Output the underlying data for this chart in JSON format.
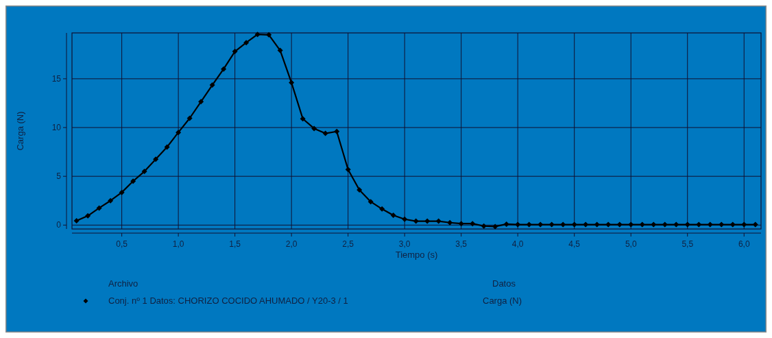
{
  "chart_data": {
    "type": "line",
    "xlabel": "Tiempo (s)",
    "ylabel": "Carga (N)",
    "legend_title": "Archivo",
    "annotations": [
      "Datos",
      "Carga (N)"
    ],
    "xlim": [
      0.06,
      6.15
    ],
    "ylim": [
      -0.4,
      19.7
    ],
    "xticks": [
      {
        "value": 0.5,
        "label": "0,5"
      },
      {
        "value": 1,
        "label": "1,0"
      },
      {
        "value": 1.5,
        "label": "1,5"
      },
      {
        "value": 2,
        "label": "2,0"
      },
      {
        "value": 2.5,
        "label": "2,5"
      },
      {
        "value": 3,
        "label": "3,0"
      },
      {
        "value": 3.5,
        "label": "3,5"
      },
      {
        "value": 4,
        "label": "4,0"
      },
      {
        "value": 4.5,
        "label": "4,5"
      },
      {
        "value": 5,
        "label": "5,0"
      },
      {
        "value": 5.5,
        "label": "5,5"
      },
      {
        "value": 6,
        "label": "6,0"
      }
    ],
    "yticks": [
      0,
      5,
      10,
      15
    ],
    "grid": true,
    "legend": "bottom",
    "marker": "diamond",
    "line_style": "solid",
    "x": [
      0.1,
      0.2,
      0.3,
      0.4,
      0.5,
      0.6,
      0.7,
      0.8,
      0.9,
      1.0,
      1.1,
      1.2,
      1.3,
      1.4,
      1.5,
      1.6,
      1.7,
      1.8,
      1.9,
      2.0,
      2.1,
      2.2,
      2.3,
      2.4,
      2.5,
      2.6,
      2.7,
      2.8,
      2.9,
      3.0,
      3.1,
      3.2,
      3.3,
      3.4,
      3.5,
      3.6,
      3.7,
      3.8,
      3.9,
      4.0,
      4.1,
      4.2,
      4.3,
      4.4,
      4.5,
      4.6,
      4.7,
      4.8,
      4.9,
      5.0,
      5.1,
      5.2,
      5.3,
      5.4,
      5.5,
      5.6,
      5.7,
      5.8,
      5.9,
      6.0,
      6.1
    ],
    "series": [
      {
        "name": "Conj. nº 1 Datos: CHORIZO COCIDO AHUMADO  / Y20-3 / 1",
        "color": "#000000",
        "values": [
          0.45,
          0.95,
          1.75,
          2.5,
          3.35,
          4.5,
          5.5,
          6.75,
          8.0,
          9.5,
          10.95,
          12.65,
          14.35,
          16.0,
          17.8,
          18.7,
          19.55,
          19.5,
          17.9,
          14.6,
          10.9,
          9.9,
          9.4,
          9.6,
          5.7,
          3.6,
          2.4,
          1.65,
          1.0,
          0.6,
          0.4,
          0.4,
          0.4,
          0.25,
          0.15,
          0.15,
          -0.1,
          -0.15,
          0.1,
          0.05,
          0.05,
          0.05,
          0.05,
          0.05,
          0.05,
          0.05,
          0.05,
          0.05,
          0.05,
          0.05,
          0.05,
          0.05,
          0.05,
          0.05,
          0.05,
          0.05,
          0.05,
          0.05,
          0.05,
          0.05,
          0.05
        ]
      }
    ]
  }
}
